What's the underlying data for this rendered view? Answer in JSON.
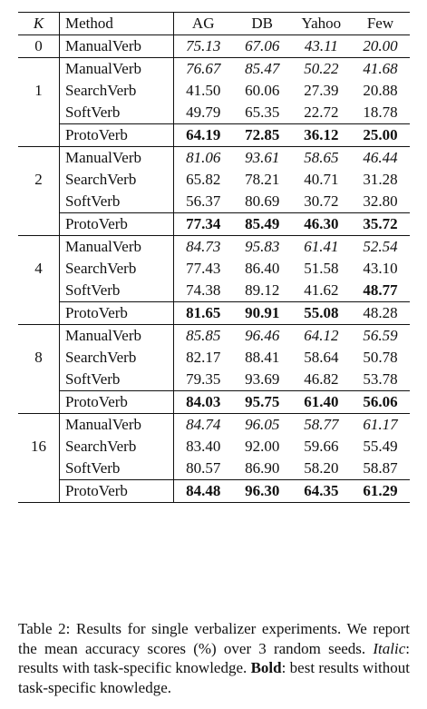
{
  "table": {
    "headers": {
      "k": "K",
      "method": "Method",
      "cols": [
        "AG",
        "DB",
        "Yahoo",
        "Few"
      ]
    },
    "zero_group": {
      "k": "0",
      "row": {
        "method": "ManualVerb",
        "values": [
          "75.13",
          "67.06",
          "43.11",
          "20.00"
        ]
      }
    },
    "groups": [
      {
        "k": "1",
        "rows": [
          {
            "method": "ManualVerb",
            "values": [
              "76.67",
              "85.47",
              "50.22",
              "41.68"
            ]
          },
          {
            "method": "SearchVerb",
            "values": [
              "41.50",
              "60.06",
              "27.39",
              "20.88"
            ]
          },
          {
            "method": "SoftVerb",
            "values": [
              "49.79",
              "65.35",
              "22.72",
              "18.78"
            ]
          }
        ],
        "proto": {
          "method": "ProtoVerb",
          "values": [
            "64.19",
            "72.85",
            "36.12",
            "25.00"
          ]
        }
      },
      {
        "k": "2",
        "rows": [
          {
            "method": "ManualVerb",
            "values": [
              "81.06",
              "93.61",
              "58.65",
              "46.44"
            ]
          },
          {
            "method": "SearchVerb",
            "values": [
              "65.82",
              "78.21",
              "40.71",
              "31.28"
            ]
          },
          {
            "method": "SoftVerb",
            "values": [
              "56.37",
              "80.69",
              "30.72",
              "32.80"
            ]
          }
        ],
        "proto": {
          "method": "ProtoVerb",
          "values": [
            "77.34",
            "85.49",
            "46.30",
            "35.72"
          ]
        }
      },
      {
        "k": "4",
        "rows": [
          {
            "method": "ManualVerb",
            "values": [
              "84.73",
              "95.83",
              "61.41",
              "52.54"
            ]
          },
          {
            "method": "SearchVerb",
            "values": [
              "77.43",
              "86.40",
              "51.58",
              "43.10"
            ]
          },
          {
            "method": "SoftVerb",
            "values": [
              "74.38",
              "89.12",
              "41.62",
              "48.77"
            ]
          }
        ],
        "proto": {
          "method": "ProtoVerb",
          "values": [
            "81.65",
            "90.91",
            "55.08",
            "48.28"
          ]
        }
      },
      {
        "k": "8",
        "rows": [
          {
            "method": "ManualVerb",
            "values": [
              "85.85",
              "96.46",
              "64.12",
              "56.59"
            ]
          },
          {
            "method": "SearchVerb",
            "values": [
              "82.17",
              "88.41",
              "58.64",
              "50.78"
            ]
          },
          {
            "method": "SoftVerb",
            "values": [
              "79.35",
              "93.69",
              "46.82",
              "53.78"
            ]
          }
        ],
        "proto": {
          "method": "ProtoVerb",
          "values": [
            "84.03",
            "95.75",
            "61.40",
            "56.06"
          ]
        }
      },
      {
        "k": "16",
        "rows": [
          {
            "method": "ManualVerb",
            "values": [
              "84.74",
              "96.05",
              "58.77",
              "61.17"
            ]
          },
          {
            "method": "SearchVerb",
            "values": [
              "83.40",
              "92.00",
              "59.66",
              "55.49"
            ]
          },
          {
            "method": "SoftVerb",
            "values": [
              "80.57",
              "86.90",
              "58.20",
              "58.87"
            ]
          }
        ],
        "proto": {
          "method": "ProtoVerb",
          "values": [
            "84.48",
            "96.30",
            "64.35",
            "61.29"
          ]
        }
      }
    ]
  },
  "caption": {
    "label": "Table 2:",
    "text_1": " Results for single verbalizer experiments. We report the mean accuracy scores (%) over 3 random seeds. ",
    "italic_term": "Italic",
    "text_2": ": results with task-specific knowledge. ",
    "bold_term": "Bold",
    "text_3": ": best results without task-specific knowledge."
  }
}
